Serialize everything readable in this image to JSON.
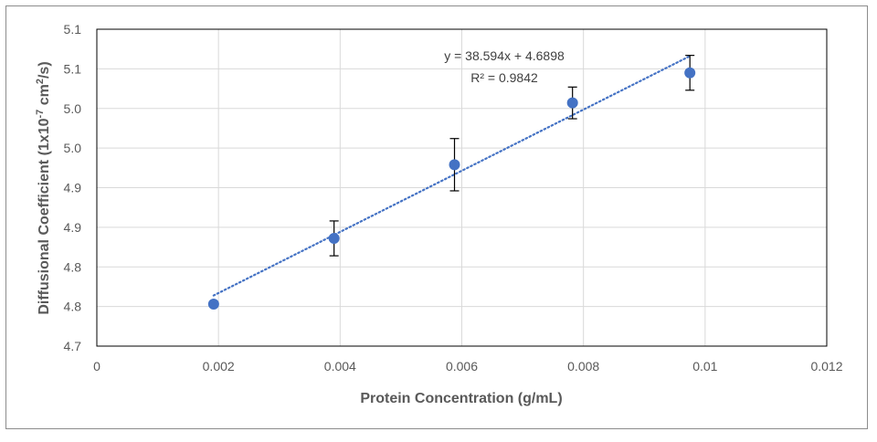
{
  "chart_data": {
    "type": "scatter",
    "title": "",
    "xlabel": "Protein Concentration (g/mL)",
    "ylabel_parts": [
      "Diffusional Coefficient (1x10",
      "-7",
      " cm",
      "2",
      "/s)"
    ],
    "xlim": [
      0,
      0.012
    ],
    "ylim": [
      4.7,
      5.1
    ],
    "x_ticks": [
      0,
      0.002,
      0.004,
      0.006,
      0.008,
      0.01,
      0.012
    ],
    "x_tick_labels": [
      "0",
      "0.002",
      "0.004",
      "0.006",
      "0.008",
      "0.01",
      "0.012"
    ],
    "y_ticks": [
      4.7,
      4.75,
      4.8,
      4.85,
      4.9,
      4.95,
      5.0,
      5.05,
      5.1
    ],
    "y_tick_labels": [
      "4.7",
      "4.8",
      "4.8",
      "4.9",
      "4.9",
      "5.0",
      "5.0",
      "5.1",
      "5.1"
    ],
    "grid": true,
    "legend": "none",
    "series": [
      {
        "color": "#4472C4",
        "points": [
          {
            "x": 0.00192,
            "y": 4.753,
            "err": 0.0
          },
          {
            "x": 0.0039,
            "y": 4.836,
            "err": 0.022
          },
          {
            "x": 0.00588,
            "y": 4.929,
            "err": 0.033
          },
          {
            "x": 0.00782,
            "y": 5.007,
            "err": 0.02
          },
          {
            "x": 0.00975,
            "y": 5.045,
            "err": 0.022
          }
        ]
      }
    ],
    "trendline": {
      "slope": 38.594,
      "intercept": 4.6898,
      "x_range": [
        0.00192,
        0.00975
      ],
      "style": "dotted",
      "color": "#4472C4"
    },
    "annotations": {
      "equation": "y = 38.594x + 4.6898",
      "r_squared": "R² = 0.9842"
    }
  }
}
